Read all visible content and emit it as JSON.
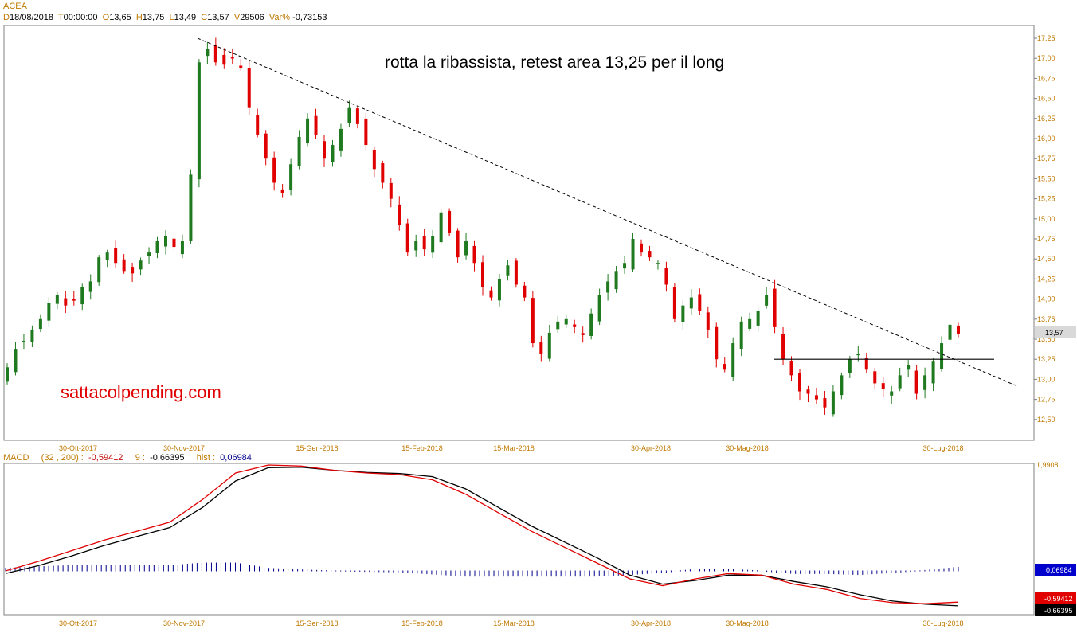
{
  "symbol": "ACEA",
  "header": {
    "date_key": "D",
    "date": "18/08/2018",
    "time_key": "T",
    "time": "00:00:00",
    "open_key": "O",
    "open": "13,65",
    "high_key": "H",
    "high": "13,75",
    "low_key": "L",
    "low": "13,49",
    "close_key": "C",
    "close": "13,57",
    "vol_key": "V",
    "volume": "29506",
    "var_key": "Var%",
    "var": "-0,73153"
  },
  "annotation": "rotta la ribassista, retest area 13,25 per il long",
  "watermark": "sattacolpending.com",
  "last_price_label": "13,57",
  "macd_header": {
    "name": "MACD",
    "params": "(32 , 200) :",
    "macd_value": "-0,59412",
    "signal_key": "9 :",
    "signal_value": "-0,66395",
    "hist_key": "hist :",
    "hist_value": "0,06984"
  },
  "macd_labels": {
    "top": "1,9908",
    "hist": "0,06984",
    "macd": "-0,59412",
    "signal": "-0,66395"
  },
  "colors": {
    "up": "#1f7a1f",
    "down": "#e00000",
    "axis_text": "#c07800",
    "macd_line": "#e00000",
    "signal_line": "#000000",
    "histogram": "#00008b"
  },
  "chart_data": [
    {
      "type": "candlestick",
      "title": "ACEA",
      "y_tick_labels": [
        "17,25",
        "17,00",
        "16,75",
        "16,50",
        "16,25",
        "16,00",
        "15,75",
        "15,50",
        "15,25",
        "15,00",
        "14,75",
        "14,50",
        "14,25",
        "14,00",
        "13,75",
        "13,50",
        "13,25",
        "13,00",
        "12,75",
        "12,50"
      ],
      "ylim": [
        12.32,
        17.38
      ],
      "x_tick_labels": [
        "30-Ott-2017",
        "30-Nov-2017",
        "15-Gen-2018",
        "15-Feb-2018",
        "15-Mar-2018",
        "30-Apr-2018",
        "30-Mag-2018",
        "30-Lug-2018"
      ],
      "close_path": [
        13.15,
        13.38,
        13.48,
        13.62,
        13.75,
        13.95,
        14.05,
        13.92,
        13.98,
        14.15,
        14.22,
        14.52,
        14.58,
        14.45,
        14.35,
        14.32,
        14.48,
        14.58,
        14.72,
        14.78,
        14.65,
        14.72,
        15.55,
        16.95,
        17.12,
        16.95,
        16.92,
        17.0,
        16.88,
        16.38,
        16.05,
        15.75,
        15.45,
        15.32,
        15.68,
        16.02,
        16.25,
        16.05,
        15.75,
        15.92,
        16.12,
        16.38,
        16.18,
        15.92,
        15.62,
        15.45,
        15.25,
        14.92,
        14.58,
        14.72,
        14.62,
        14.78,
        15.08,
        14.82,
        14.52,
        14.72,
        14.45,
        14.15,
        14.02,
        14.25,
        14.42,
        14.18,
        14.02,
        13.45,
        13.32,
        13.58,
        13.72,
        13.75,
        13.65,
        13.55,
        13.82,
        14.05,
        14.22,
        14.35,
        14.45,
        14.75,
        14.58,
        14.52,
        14.45,
        14.18,
        13.75,
        13.92,
        14.02,
        13.85,
        13.62,
        13.25,
        13.12,
        13.45,
        13.72,
        13.75,
        13.85,
        14.05,
        13.65,
        13.25,
        13.05,
        12.85,
        12.82,
        12.75,
        12.65,
        12.85,
        13.05,
        13.25,
        13.32,
        13.12,
        12.95,
        12.88,
        12.85,
        13.05,
        13.18,
        12.82,
        13.05,
        13.22,
        13.45,
        13.68,
        13.57
      ],
      "levels": [
        {
          "name": "support",
          "value": 13.25
        },
        {
          "name": "trendline",
          "from": 17.25,
          "to": 12.92
        }
      ]
    },
    {
      "type": "line",
      "title": "MACD (32 , 200)",
      "x_tick_labels": [
        "30-Ott-2017",
        "30-Nov-2017",
        "15-Gen-2018",
        "15-Feb-2018",
        "15-Mar-2018",
        "30-Apr-2018",
        "30-Mag-2018",
        "30-Lug-2018"
      ],
      "series": [
        {
          "name": "MACD",
          "values": [
            0.0,
            0.18,
            0.38,
            0.58,
            0.75,
            0.92,
            1.35,
            1.85,
            2.0,
            1.98,
            1.9,
            1.85,
            1.82,
            1.72,
            1.45,
            1.1,
            0.75,
            0.45,
            0.15,
            -0.15,
            -0.28,
            -0.15,
            -0.05,
            -0.08,
            -0.25,
            -0.35,
            -0.52,
            -0.6,
            -0.62,
            -0.59
          ]
        },
        {
          "name": "9",
          "values": [
            -0.05,
            0.1,
            0.28,
            0.48,
            0.65,
            0.82,
            1.2,
            1.7,
            1.95,
            1.96,
            1.9,
            1.86,
            1.84,
            1.78,
            1.55,
            1.2,
            0.85,
            0.55,
            0.25,
            -0.08,
            -0.25,
            -0.18,
            -0.08,
            -0.08,
            -0.2,
            -0.3,
            -0.45,
            -0.57,
            -0.63,
            -0.66
          ]
        },
        {
          "name": "hist",
          "values": [
            0.05,
            0.08,
            0.1,
            0.1,
            0.1,
            0.1,
            0.15,
            0.15,
            0.05,
            0.02,
            0.0,
            -0.01,
            -0.02,
            -0.06,
            -0.1,
            -0.1,
            -0.1,
            -0.1,
            -0.1,
            -0.07,
            -0.03,
            0.03,
            0.03,
            0.0,
            -0.05,
            -0.05,
            -0.07,
            -0.03,
            0.01,
            0.07
          ]
        }
      ]
    }
  ]
}
